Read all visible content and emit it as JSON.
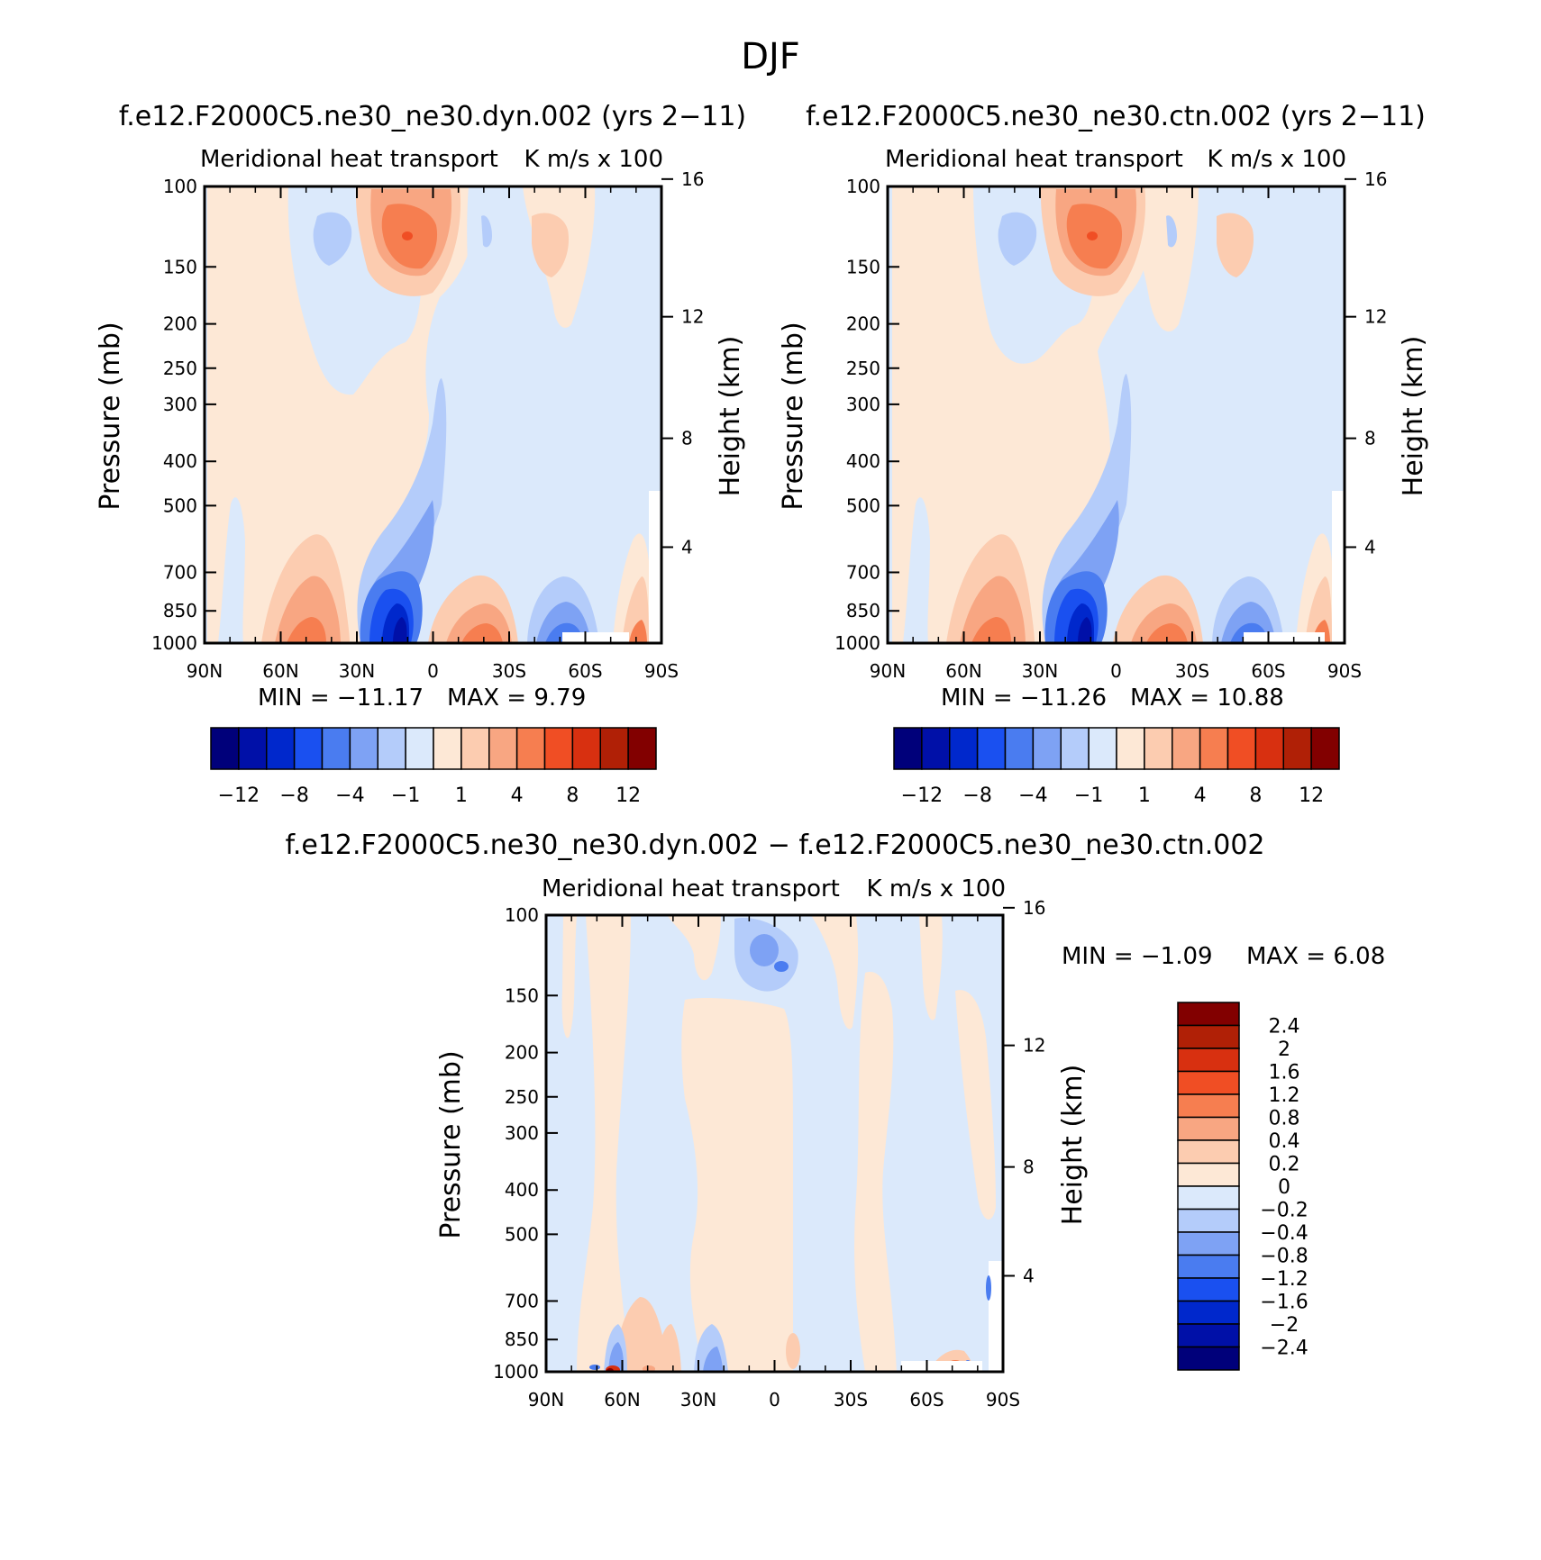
{
  "figure": {
    "title": "DJF"
  },
  "chart_data": [
    {
      "type": "heatmap",
      "title": "f.e12.F2000C5.ne30_ne30.dyn.002 (yrs 2−11)",
      "subtitle_left": "Meridional heat transport",
      "subtitle_right": "K m/s x 100",
      "xlabel": "",
      "ylabel": "Pressure (mb)",
      "ylabel_right": "Height (km)",
      "x_ticks": [
        "90N",
        "60N",
        "30N",
        "0",
        "30S",
        "60S",
        "90S"
      ],
      "y_ticks": [
        "100",
        "150",
        "200",
        "250",
        "300",
        "400",
        "500",
        "700",
        "850",
        "1000"
      ],
      "y_right_ticks": [
        "16",
        "12",
        "8",
        "4"
      ],
      "min_label": "MIN = −11.17",
      "max_label": "MAX =   9.79",
      "min": -11.17,
      "max": 9.79,
      "colorbar_labels": [
        "−12",
        "−8",
        "−4",
        "−1",
        "1",
        "4",
        "8",
        "12"
      ],
      "colorbar_levels": [
        -12,
        -10,
        -8,
        -6,
        -4,
        -2,
        -1,
        0,
        1,
        2,
        4,
        6,
        8,
        10,
        12
      ]
    },
    {
      "type": "heatmap",
      "title": "f.e12.F2000C5.ne30_ne30.ctn.002 (yrs 2−11)",
      "subtitle_left": "Meridional heat transport",
      "subtitle_right": "K m/s x 100",
      "xlabel": "",
      "ylabel": "Pressure (mb)",
      "ylabel_right": "Height (km)",
      "x_ticks": [
        "90N",
        "60N",
        "30N",
        "0",
        "30S",
        "60S",
        "90S"
      ],
      "y_ticks": [
        "100",
        "150",
        "200",
        "250",
        "300",
        "400",
        "500",
        "700",
        "850",
        "1000"
      ],
      "y_right_ticks": [
        "16",
        "12",
        "8",
        "4"
      ],
      "min_label": "MIN = −11.26",
      "max_label": "MAX =  10.88",
      "min": -11.26,
      "max": 10.88,
      "colorbar_labels": [
        "−12",
        "−8",
        "−4",
        "−1",
        "1",
        "4",
        "8",
        "12"
      ],
      "colorbar_levels": [
        -12,
        -10,
        -8,
        -6,
        -4,
        -2,
        -1,
        0,
        1,
        2,
        4,
        6,
        8,
        10,
        12
      ]
    },
    {
      "type": "heatmap",
      "title": "f.e12.F2000C5.ne30_ne30.dyn.002 − f.e12.F2000C5.ne30_ne30.ctn.002",
      "subtitle_left": "Meridional heat transport",
      "subtitle_right": "K m/s x 100",
      "xlabel": "",
      "ylabel": "Pressure (mb)",
      "ylabel_right": "Height (km)",
      "x_ticks": [
        "90N",
        "60N",
        "30N",
        "0",
        "30S",
        "60S",
        "90S"
      ],
      "y_ticks": [
        "100",
        "150",
        "200",
        "250",
        "300",
        "400",
        "500",
        "700",
        "850",
        "1000"
      ],
      "y_right_ticks": [
        "16",
        "12",
        "8",
        "4"
      ],
      "min_label": "MIN =   −1.09",
      "max_label": "MAX =    6.08",
      "min": -1.09,
      "max": 6.08,
      "colorbar_labels": [
        "2.4",
        "2",
        "1.6",
        "1.2",
        "0.8",
        "0.4",
        "0.2",
        "0",
        "−0.2",
        "−0.4",
        "−0.8",
        "−1.2",
        "−1.6",
        "−2",
        "−2.4"
      ],
      "colorbar_levels": [
        -2.4,
        -2,
        -1.6,
        -1.2,
        -0.8,
        -0.4,
        -0.2,
        0,
        0.2,
        0.4,
        0.8,
        1.2,
        1.6,
        2,
        2.4
      ]
    }
  ],
  "colors": {
    "scale": [
      "#00007a",
      "#0010a8",
      "#0028cc",
      "#1a50f0",
      "#4a7cf0",
      "#7ea2f4",
      "#b4ccfa",
      "#dbe9fb",
      "#fde8d6",
      "#fcccb0",
      "#f8a682",
      "#f67e50",
      "#f04e24",
      "#d83010",
      "#b02006",
      "#820000"
    ]
  }
}
